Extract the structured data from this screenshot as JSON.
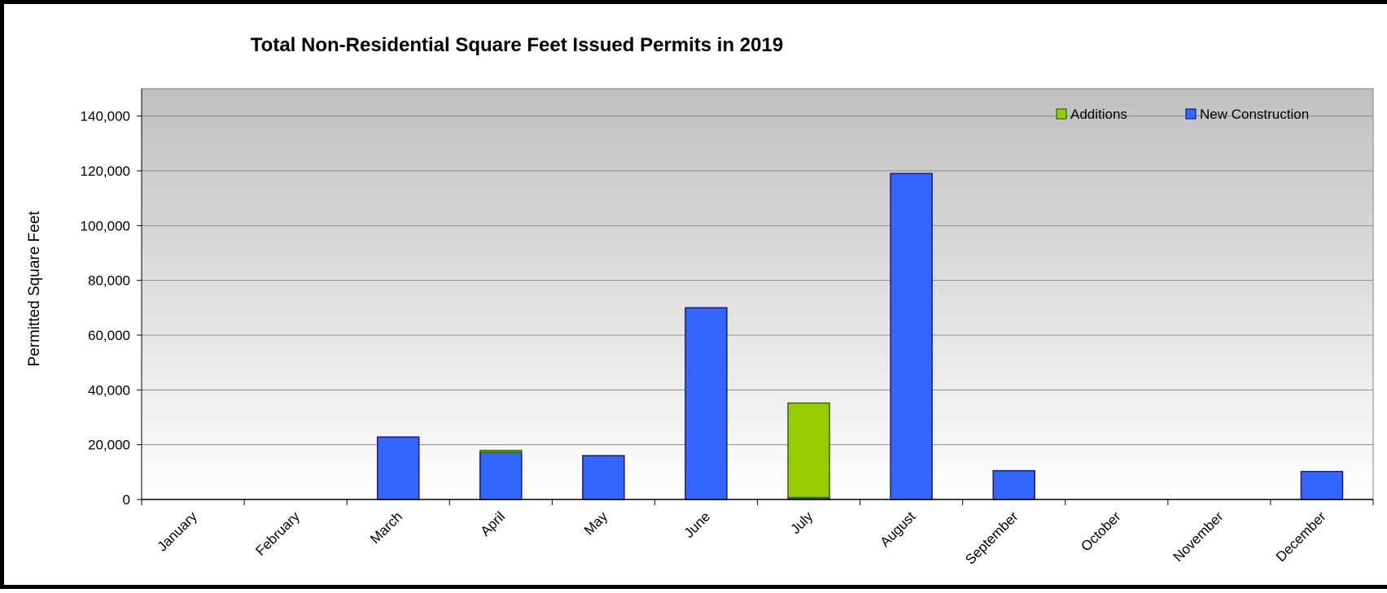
{
  "chart_data": {
    "type": "bar",
    "stacked": true,
    "title": "Total Non-Residential Square Feet Issued Permits in 2019",
    "xlabel": "",
    "ylabel": "Permitted Square Feet",
    "ylim": [
      0,
      150000
    ],
    "yticks": [
      0,
      20000,
      40000,
      60000,
      80000,
      100000,
      120000,
      140000
    ],
    "ytick_labels": [
      "0",
      "20,000",
      "40,000",
      "60,000",
      "80,000",
      "100,000",
      "120,000",
      "140,000"
    ],
    "grid": true,
    "legend_position": "top-right",
    "categories": [
      "January",
      "February",
      "March",
      "April",
      "May",
      "June",
      "July",
      "August",
      "September",
      "October",
      "November",
      "December"
    ],
    "series": [
      {
        "name": "New Construction",
        "color": "#3366ff",
        "values": [
          0,
          0,
          22800,
          17200,
          16000,
          70000,
          700,
          119000,
          10500,
          0,
          0,
          10200
        ]
      },
      {
        "name": "Additions",
        "color": "#99cc00",
        "values": [
          0,
          0,
          0,
          700,
          0,
          0,
          34500,
          0,
          0,
          0,
          0,
          0
        ]
      }
    ],
    "legend_order": [
      "Additions",
      "New Construction"
    ]
  }
}
